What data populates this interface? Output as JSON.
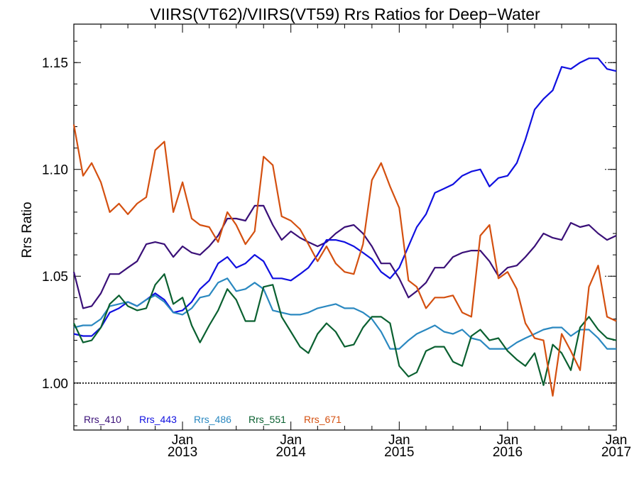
{
  "chart_data": {
    "type": "line",
    "title": "VIIRS(VT62)/VIIRS(VT59)  Rrs Ratios for Deep−Water",
    "ylabel": "Rrs Ratio",
    "xlabel": "",
    "ylim": [
      0.978,
      1.168
    ],
    "xlim": [
      "2012-01-01",
      "2017-01-01"
    ],
    "y_ticks": [
      {
        "value": 1.0,
        "label": "1.00"
      },
      {
        "value": 1.05,
        "label": "1.05"
      },
      {
        "value": 1.1,
        "label": "1.10"
      },
      {
        "value": 1.15,
        "label": "1.15"
      }
    ],
    "x_ticks": [
      {
        "date": "2013-01-01",
        "month": "Jan",
        "year": "2013"
      },
      {
        "date": "2014-01-01",
        "month": "Jan",
        "year": "2014"
      },
      {
        "date": "2015-01-01",
        "month": "Jan",
        "year": "2015"
      },
      {
        "date": "2016-01-01",
        "month": "Jan",
        "year": "2016"
      },
      {
        "date": "2017-01-01",
        "month": "Jan",
        "year": "2017"
      }
    ],
    "reference_line": 1.0,
    "legend_position": "bottom-left",
    "x": [
      "2012-01-01",
      "2012-02-01",
      "2012-03-01",
      "2012-04-01",
      "2012-05-01",
      "2012-06-01",
      "2012-07-01",
      "2012-08-01",
      "2012-09-01",
      "2012-10-01",
      "2012-11-01",
      "2012-12-01",
      "2013-01-01",
      "2013-02-01",
      "2013-03-01",
      "2013-04-01",
      "2013-05-01",
      "2013-06-01",
      "2013-07-01",
      "2013-08-01",
      "2013-09-01",
      "2013-10-01",
      "2013-11-01",
      "2013-12-01",
      "2014-01-01",
      "2014-02-01",
      "2014-03-01",
      "2014-04-01",
      "2014-05-01",
      "2014-06-01",
      "2014-07-01",
      "2014-08-01",
      "2014-09-01",
      "2014-10-01",
      "2014-11-01",
      "2014-12-01",
      "2015-01-01",
      "2015-02-01",
      "2015-03-01",
      "2015-04-01",
      "2015-05-01",
      "2015-06-01",
      "2015-07-01",
      "2015-08-01",
      "2015-09-01",
      "2015-10-01",
      "2015-11-01",
      "2015-12-01",
      "2016-01-01",
      "2016-02-01",
      "2016-03-01",
      "2016-04-01",
      "2016-05-01",
      "2016-06-01",
      "2016-07-01",
      "2016-08-01",
      "2016-09-01",
      "2016-10-01",
      "2016-11-01",
      "2016-12-01",
      "2017-01-01"
    ],
    "series": [
      {
        "name": "Rrs_410",
        "color": "#3a1078",
        "values": [
          1.052,
          1.035,
          1.036,
          1.042,
          1.051,
          1.051,
          1.054,
          1.057,
          1.065,
          1.066,
          1.065,
          1.059,
          1.064,
          1.061,
          1.06,
          1.064,
          1.069,
          1.077,
          1.077,
          1.076,
          1.083,
          1.083,
          1.074,
          1.067,
          1.071,
          1.068,
          1.066,
          1.064,
          1.066,
          1.07,
          1.073,
          1.074,
          1.07,
          1.064,
          1.056,
          1.056,
          1.049,
          1.04,
          1.043,
          1.047,
          1.054,
          1.054,
          1.059,
          1.061,
          1.062,
          1.062,
          1.057,
          1.05,
          1.054,
          1.055,
          1.059,
          1.064,
          1.07,
          1.068,
          1.067,
          1.075,
          1.073,
          1.074,
          1.07,
          1.067,
          1.069
        ]
      },
      {
        "name": "Rrs_443",
        "color": "#1010e0",
        "values": [
          1.023,
          1.022,
          1.022,
          1.026,
          1.033,
          1.035,
          1.038,
          1.036,
          1.039,
          1.042,
          1.039,
          1.033,
          1.034,
          1.038,
          1.044,
          1.048,
          1.056,
          1.059,
          1.054,
          1.056,
          1.06,
          1.057,
          1.049,
          1.049,
          1.048,
          1.051,
          1.054,
          1.06,
          1.067,
          1.067,
          1.066,
          1.064,
          1.061,
          1.058,
          1.052,
          1.049,
          1.054,
          1.064,
          1.073,
          1.079,
          1.089,
          1.091,
          1.093,
          1.097,
          1.099,
          1.1,
          1.092,
          1.096,
          1.097,
          1.103,
          1.114,
          1.128,
          1.133,
          1.137,
          1.148,
          1.147,
          1.15,
          1.152,
          1.152,
          1.147,
          1.146
        ]
      },
      {
        "name": "Rrs_486",
        "color": "#2a88c0",
        "values": [
          1.026,
          1.027,
          1.027,
          1.03,
          1.036,
          1.037,
          1.038,
          1.036,
          1.039,
          1.041,
          1.038,
          1.033,
          1.032,
          1.035,
          1.04,
          1.041,
          1.047,
          1.049,
          1.043,
          1.044,
          1.047,
          1.044,
          1.034,
          1.033,
          1.032,
          1.032,
          1.033,
          1.035,
          1.036,
          1.037,
          1.035,
          1.035,
          1.033,
          1.03,
          1.024,
          1.016,
          1.016,
          1.02,
          1.023,
          1.025,
          1.027,
          1.024,
          1.023,
          1.025,
          1.021,
          1.02,
          1.016,
          1.016,
          1.016,
          1.019,
          1.021,
          1.023,
          1.025,
          1.026,
          1.026,
          1.022,
          1.025,
          1.025,
          1.021,
          1.016,
          1.016
        ]
      },
      {
        "name": "Rrs_551",
        "color": "#0a6030",
        "values": [
          1.028,
          1.019,
          1.02,
          1.026,
          1.037,
          1.041,
          1.036,
          1.034,
          1.035,
          1.046,
          1.051,
          1.037,
          1.04,
          1.027,
          1.019,
          1.027,
          1.034,
          1.044,
          1.039,
          1.029,
          1.029,
          1.045,
          1.046,
          1.031,
          1.024,
          1.017,
          1.014,
          1.023,
          1.028,
          1.024,
          1.017,
          1.018,
          1.026,
          1.031,
          1.031,
          1.028,
          1.008,
          1.003,
          1.005,
          1.015,
          1.017,
          1.017,
          1.01,
          1.008,
          1.022,
          1.025,
          1.02,
          1.021,
          1.015,
          1.011,
          1.008,
          1.014,
          0.999,
          1.018,
          1.014,
          1.006,
          1.026,
          1.031,
          1.025,
          1.021,
          1.02
        ]
      },
      {
        "name": "Rrs_671",
        "color": "#d45010",
        "values": [
          1.121,
          1.097,
          1.103,
          1.094,
          1.08,
          1.084,
          1.079,
          1.084,
          1.087,
          1.109,
          1.113,
          1.08,
          1.094,
          1.077,
          1.074,
          1.073,
          1.066,
          1.08,
          1.074,
          1.065,
          1.071,
          1.106,
          1.102,
          1.078,
          1.076,
          1.072,
          1.065,
          1.057,
          1.064,
          1.056,
          1.052,
          1.051,
          1.065,
          1.095,
          1.103,
          1.092,
          1.082,
          1.048,
          1.045,
          1.035,
          1.04,
          1.04,
          1.041,
          1.033,
          1.031,
          1.069,
          1.074,
          1.049,
          1.052,
          1.044,
          1.028,
          1.021,
          1.02,
          0.994,
          1.023,
          1.015,
          1.006,
          1.045,
          1.055,
          1.031,
          1.029
        ]
      }
    ]
  }
}
